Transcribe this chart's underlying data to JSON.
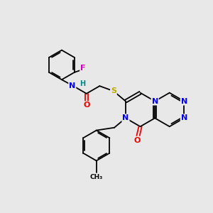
{
  "bg_color": "#e8e8e8",
  "atom_colors": {
    "C": "#000000",
    "N": "#0000ee",
    "O": "#ee0000",
    "S": "#bbaa00",
    "F": "#cc00bb",
    "H": "#008888"
  },
  "bond_color": "#000000",
  "lw": 1.3,
  "fs": 8.0
}
